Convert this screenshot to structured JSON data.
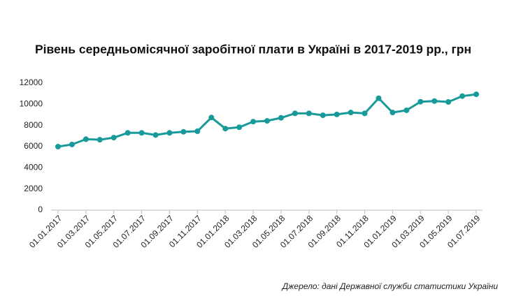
{
  "chart_data": {
    "type": "line",
    "title": "Рівень середньомісячної заробітної плати в Україні в 2017-2019 рр., грн",
    "source": "Джерело: дані Державної служби статистики України",
    "categories": [
      "01.01.2017",
      null,
      "01.03.2017",
      null,
      "01.05.2017",
      null,
      "01.07.2017",
      null,
      "01.09.2017",
      null,
      "01.11.2017",
      null,
      "01.01.2018",
      null,
      "01.03.2018",
      null,
      "01.05.2018",
      null,
      "01.07.2018",
      null,
      "01.09.2018",
      null,
      "01.11.2018",
      null,
      "01.01.2019",
      null,
      "01.03.2019",
      null,
      "01.05.2019",
      null,
      "01.07.2019"
    ],
    "series": [
      {
        "color": "#18999a",
        "values": [
          6000,
          6200,
          6700,
          6650,
          6850,
          7300,
          7300,
          7100,
          7300,
          7400,
          7450,
          8750,
          7700,
          7830,
          8360,
          8430,
          8720,
          9140,
          9140,
          8960,
          9040,
          9220,
          9140,
          10570,
          9220,
          9430,
          10240,
          10300,
          10220,
          10770,
          10940
        ]
      }
    ],
    "ylim": [
      0,
      12000
    ],
    "yticks": [
      0,
      2000,
      4000,
      6000,
      8000,
      10000,
      12000
    ],
    "grid": false
  }
}
